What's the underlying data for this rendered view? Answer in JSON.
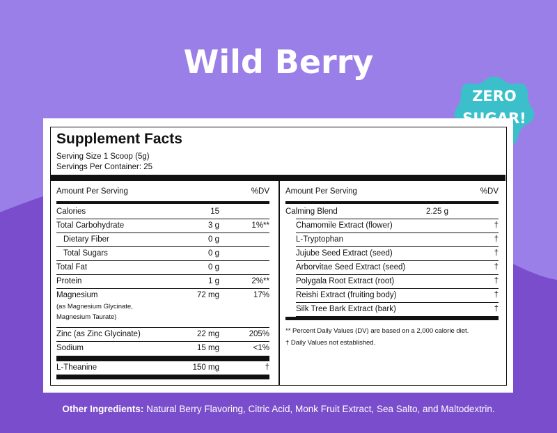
{
  "title": "Wild Berry",
  "badge": {
    "line1": "ZERO",
    "line2": "SUGAR!"
  },
  "colors": {
    "background": "#9b7fe8",
    "wave": "#7a4dcc",
    "badge": "#3bbfca",
    "text": "#111111"
  },
  "supplement_facts": {
    "heading": "Supplement Facts",
    "serving_size": "Serving Size 1 Scoop (5g)",
    "servings_per_container": "Servings Per Container: 25",
    "left": {
      "header_amount": "Amount Per Serving",
      "header_dv": "%DV",
      "rows": [
        {
          "name": "Calories",
          "amount": "15",
          "dv": ""
        },
        {
          "name": "Total Carbohydrate",
          "amount": "3 g",
          "dv": "1%**"
        },
        {
          "name": "Dietary Fiber",
          "amount": "0 g",
          "dv": ""
        },
        {
          "name": "Total Sugars",
          "amount": "0 g",
          "dv": ""
        },
        {
          "name": "Total Fat",
          "amount": "0 g",
          "dv": ""
        },
        {
          "name": "Protein",
          "amount": "1 g",
          "dv": "2%**"
        },
        {
          "name": "Magnesium",
          "amount": "72 mg",
          "dv": "17%",
          "sub1": "(as Magnesium Glycinate,",
          "sub2": "Magnesium Taurate)"
        },
        {
          "name": "Zinc (as Zinc Glycinate)",
          "amount": "22 mg",
          "dv": "205%"
        },
        {
          "name": "Sodium",
          "amount": "15 mg",
          "dv": "<1%"
        },
        {
          "name": "L-Theanine",
          "amount": "150 mg",
          "dv": "†"
        }
      ]
    },
    "right": {
      "header_amount": "Amount Per Serving",
      "header_dv": "%DV",
      "blend_name": "Calming Blend",
      "blend_amount": "2.25 g",
      "rows": [
        {
          "name": "Chamomile Extract (flower)",
          "dv": "†"
        },
        {
          "name": "L-Tryptophan",
          "dv": "†"
        },
        {
          "name": "Jujube Seed Extract (seed)",
          "dv": "†"
        },
        {
          "name": "Arborvitae Seed Extract (seed)",
          "dv": "†"
        },
        {
          "name": "Polygala Root Extract (root)",
          "dv": "†"
        },
        {
          "name": "Reishi Extract (fruiting body)",
          "dv": "†"
        },
        {
          "name": "Silk Tree Bark Extract (bark)",
          "dv": "†"
        }
      ],
      "footnote1": "** Percent Daily Values (DV) are based on a 2,000 calorie diet.",
      "footnote2": "† Daily Values not established."
    }
  },
  "other_ingredients": {
    "label": "Other Ingredients:",
    "text": " Natural Berry Flavoring, Citric Acid, Monk Fruit Extract, Sea Salto, and Maltodextrin."
  }
}
